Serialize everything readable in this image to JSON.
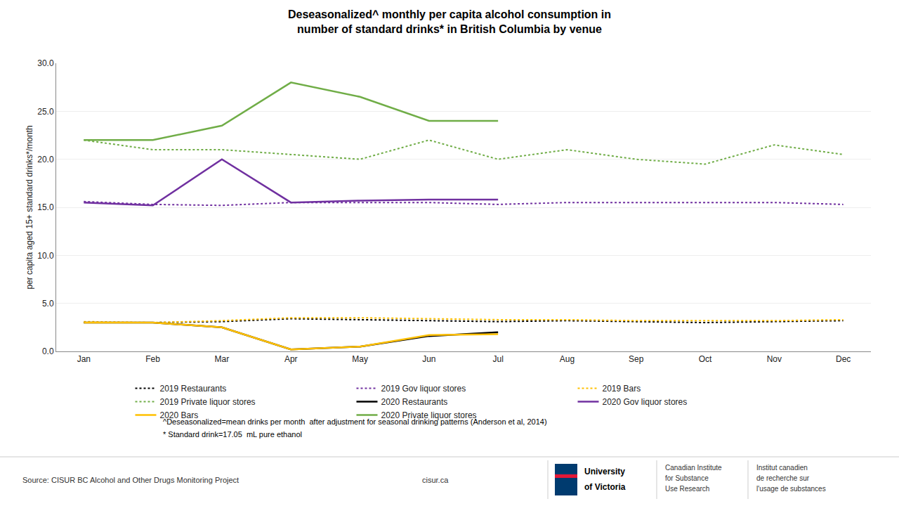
{
  "chart_data": {
    "type": "line",
    "title": "Deseasonalized^ monthly per capita alcohol consumption in",
    "subtitle": "number of standard drinks* in British Columbia by venue",
    "y_label": "per capita aged 15+ standard drinks*/month",
    "categories": [
      "Jan",
      "Feb",
      "Mar",
      "Apr",
      "May",
      "Jun",
      "Jul",
      "Aug",
      "Sep",
      "Oct",
      "Nov",
      "Dec"
    ],
    "series": [
      {
        "name": "2019 Restaurants",
        "color": "#000000",
        "line_style": "dotted",
        "values": [
          3.0,
          3.0,
          3.1,
          3.4,
          3.3,
          3.2,
          3.1,
          3.2,
          3.1,
          3.0,
          3.1,
          3.2
        ]
      },
      {
        "name": "2019 Gov liquor stores",
        "color": "#7030a0",
        "line_style": "dotted",
        "values": [
          15.6,
          15.3,
          15.2,
          15.5,
          15.5,
          15.5,
          15.3,
          15.5,
          15.5,
          15.5,
          15.5,
          15.3
        ]
      },
      {
        "name": "2019 Bars",
        "color": "#ffc000",
        "line_style": "dotted",
        "values": [
          3.1,
          3.0,
          3.2,
          3.5,
          3.5,
          3.4,
          3.3,
          3.3,
          3.2,
          3.2,
          3.2,
          3.3
        ]
      },
      {
        "name": "2019 Private liquor stores",
        "color": "#70ad47",
        "line_style": "dotted",
        "values": [
          22.0,
          21.0,
          21.0,
          20.5,
          20.0,
          22.0,
          20.0,
          21.0,
          20.0,
          19.5,
          21.5,
          20.5
        ]
      },
      {
        "name": "2020 Restaurants",
        "color": "#000000",
        "line_style": "solid",
        "values": [
          3.0,
          3.0,
          2.5,
          0.2,
          0.5,
          1.6,
          2.0,
          null,
          null,
          null,
          null,
          null
        ]
      },
      {
        "name": "2020 Gov liquor stores",
        "color": "#7030a0",
        "line_style": "solid",
        "values": [
          15.5,
          15.2,
          20.0,
          15.5,
          15.7,
          15.8,
          15.8,
          null,
          null,
          null,
          null,
          null
        ]
      },
      {
        "name": "2020 Bars",
        "color": "#ffc000",
        "line_style": "solid",
        "values": [
          3.0,
          3.0,
          2.5,
          0.2,
          0.5,
          1.7,
          1.8,
          null,
          null,
          null,
          null,
          null
        ]
      },
      {
        "name": "2020 Private liquor stores",
        "color": "#70ad47",
        "line_style": "solid",
        "values": [
          22.0,
          22.0,
          23.5,
          28.0,
          26.5,
          24.0,
          24.0,
          null,
          null,
          null,
          null,
          null
        ]
      }
    ],
    "ylim": [
      0,
      30
    ],
    "yticks": [
      {
        "value": 0,
        "label": "0.0"
      },
      {
        "value": 5,
        "label": "5.0"
      },
      {
        "value": 10,
        "label": "10.0"
      },
      {
        "value": 15,
        "label": "15.0"
      },
      {
        "value": 20,
        "label": "20.0"
      },
      {
        "value": 25,
        "label": "25.0"
      },
      {
        "value": 30,
        "label": "30.0"
      }
    ],
    "grid": true,
    "legend": "bottom",
    "annotations": [
      "^Deseasonalized=mean drinks per month  after adjustment for seasonal drinking patterns (Anderson et al, 2014)",
      "* Standard drink=17.05  mL pure ethanol",
      "Source: CISUR BC Alcohol and Other Drugs Monitoring Project",
      "cisur.ca",
      "University",
      "of Victoria",
      "Canadian Institute",
      "for Substance",
      "Use Research",
      "Institut canadien",
      "de recherche sur",
      "l'usage de substances"
    ]
  }
}
